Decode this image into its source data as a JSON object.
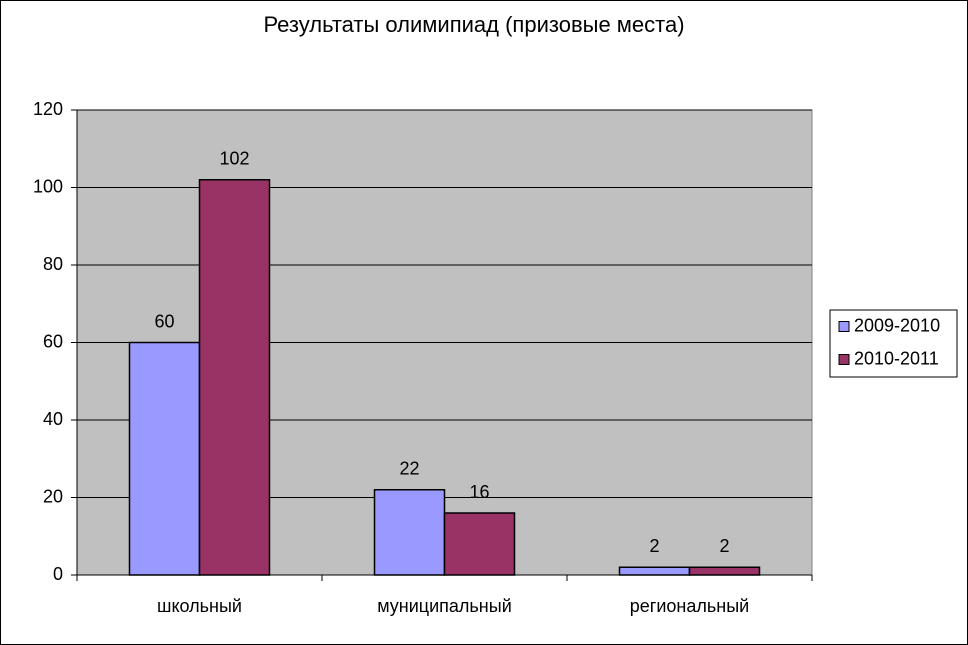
{
  "chart_data": {
    "type": "bar",
    "title": "Результаты олимипиад  (призовые места)",
    "categories": [
      "школьный",
      "муниципальный",
      "региональный"
    ],
    "series": [
      {
        "name": "2009-2010",
        "color": "#9999ff",
        "values": [
          60,
          22,
          2
        ]
      },
      {
        "name": "2010-2011",
        "color": "#993366",
        "values": [
          102,
          16,
          2
        ]
      }
    ],
    "ylim": [
      0,
      120
    ],
    "yticks": [
      0,
      20,
      40,
      60,
      80,
      100,
      120
    ],
    "grid": true,
    "legend": "right",
    "plot_background": "#c0c0c0",
    "data_labels": true
  }
}
